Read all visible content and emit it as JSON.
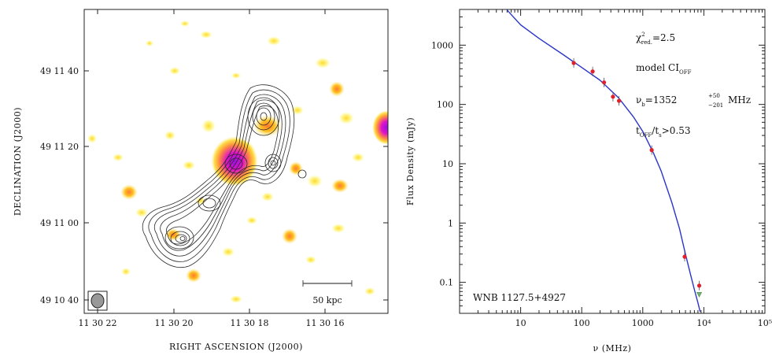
{
  "left_panel": {
    "xlabel": "RIGHT ASCENSION  (J2000)",
    "ylabel": "DECLINATION  (J2000)",
    "x_ticks": [
      "11 30 22",
      "11 30 20",
      "11 30 18",
      "11 30 16"
    ],
    "y_ticks": [
      "49 11 40",
      "49 11 20",
      "49 11 00",
      "49 10 40"
    ],
    "scale_bar_label": "50 kpc"
  },
  "chart_data": [
    {
      "type": "scatter",
      "x_ticks": [
        "11 30 22",
        "11 30 20",
        "11 30 18",
        "11 30 16"
      ],
      "y_ticks": [
        "49 11 40",
        "49 11 20",
        "49 11 00",
        "49 10 40"
      ],
      "xlabel": "RIGHT ASCENSION  (J2000)",
      "ylabel": "DECLINATION  (J2000)",
      "annotations": [
        "50 kpc"
      ]
    },
    {
      "type": "scatter",
      "xlabel": "ν (MHz)",
      "ylabel": "Flux Density (mJy)",
      "xscale": "log",
      "yscale": "log",
      "xlim": [
        1,
        100000
      ],
      "ylim": [
        0.03,
        4000
      ],
      "x_ticks": [
        {
          "value": 10,
          "label": "10"
        },
        {
          "value": 100,
          "label": "100"
        },
        {
          "value": 1000,
          "label": "1000"
        },
        {
          "value": 10000,
          "label": "10⁴"
        },
        {
          "value": 100000,
          "label": "10⁵"
        }
      ],
      "y_ticks": [
        {
          "value": 0.1,
          "label": "0.1"
        },
        {
          "value": 1,
          "label": "1"
        },
        {
          "value": 10,
          "label": "10"
        },
        {
          "value": 100,
          "label": "100"
        },
        {
          "value": 1000,
          "label": "1000"
        }
      ],
      "points": [
        {
          "x": 74,
          "y": 500
        },
        {
          "x": 151,
          "y": 360
        },
        {
          "x": 232,
          "y": 235
        },
        {
          "x": 325,
          "y": 135
        },
        {
          "x": 408,
          "y": 115
        },
        {
          "x": 1400,
          "y": 17
        },
        {
          "x": 4850,
          "y": 0.27
        },
        {
          "x": 8400,
          "y": 0.088
        }
      ],
      "upper_limits": [
        {
          "x": 8400,
          "y": 0.062
        }
      ],
      "fit_curve": [
        {
          "x": 6,
          "y": 3900
        },
        {
          "x": 10,
          "y": 2200
        },
        {
          "x": 20,
          "y": 1300
        },
        {
          "x": 50,
          "y": 690
        },
        {
          "x": 100,
          "y": 420
        },
        {
          "x": 200,
          "y": 255
        },
        {
          "x": 400,
          "y": 130
        },
        {
          "x": 700,
          "y": 62
        },
        {
          "x": 1000,
          "y": 35
        },
        {
          "x": 1500,
          "y": 15
        },
        {
          "x": 2000,
          "y": 7.5
        },
        {
          "x": 3000,
          "y": 2.2
        },
        {
          "x": 4000,
          "y": 0.8
        },
        {
          "x": 5000,
          "y": 0.3
        },
        {
          "x": 6000,
          "y": 0.14
        },
        {
          "x": 7000,
          "y": 0.075
        },
        {
          "x": 8000,
          "y": 0.045
        },
        {
          "x": 8700,
          "y": 0.032
        }
      ],
      "annotations": {
        "chi_main": "χ",
        "chi_sup": "2",
        "chi_sub": "red.",
        "chi_value": "=2.5",
        "model_main": "model CI",
        "model_sub": "OFF",
        "nu_main": "ν",
        "nu_sub": "b",
        "nu_value": "=1352",
        "nu_err_plus": "+50",
        "nu_err_minus": "−201",
        "nu_unit": "MHz",
        "t_main": "t",
        "t_sub1": "OFF",
        "t_slash": "/t",
        "t_sub2": "s",
        "t_value": ">0.53",
        "source_name": "WNB 1127.5+4927"
      },
      "colors": {
        "curve": "#2a35c8",
        "points": "#e0202a",
        "upper_limit": "#70b070"
      }
    }
  ]
}
